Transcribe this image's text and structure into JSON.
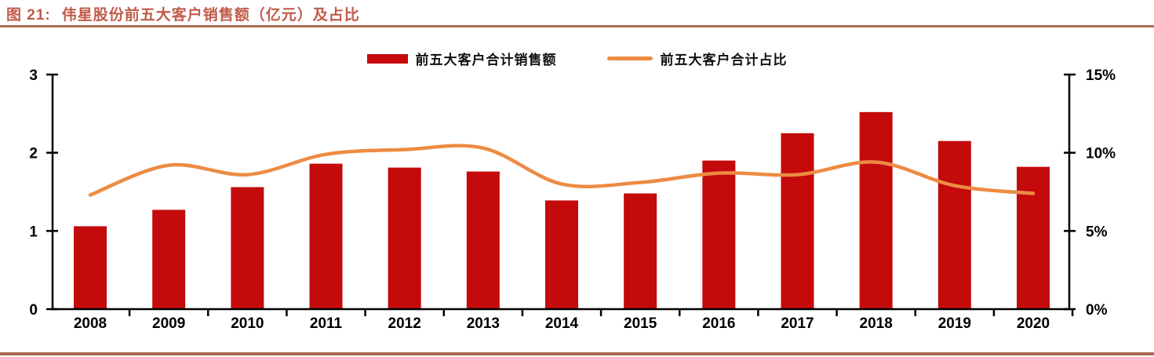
{
  "header": {
    "figure_label": "图 21:",
    "title": "伟星股份前五大客户销售额（亿元）及占比"
  },
  "colors": {
    "bar": "#C40A0B",
    "line": "#ED8B43",
    "title_text": "#C05B4A",
    "rule": "#A96A52",
    "axis": "#000000"
  },
  "legend": {
    "items": [
      {
        "label": "前五大客户合计销售额",
        "marker": "bar-swatch"
      },
      {
        "label": "前五大客户合计占比",
        "marker": "line-swatch"
      }
    ]
  },
  "chart_data": {
    "type": "bar+line",
    "title": "伟星股份前五大客户销售额（亿元）及占比",
    "categories": [
      "2008",
      "2009",
      "2010",
      "2011",
      "2012",
      "2013",
      "2014",
      "2015",
      "2016",
      "2017",
      "2018",
      "2019",
      "2020"
    ],
    "series": [
      {
        "name": "前五大客户合计销售额",
        "type": "bar",
        "axis": "left",
        "unit": "亿元",
        "values": [
          1.06,
          1.27,
          1.56,
          1.86,
          1.81,
          1.76,
          1.39,
          1.48,
          1.9,
          2.25,
          2.52,
          2.15,
          1.82
        ]
      },
      {
        "name": "前五大客户合计占比",
        "type": "line",
        "axis": "right",
        "unit": "%",
        "values": [
          7.3,
          9.2,
          8.6,
          9.9,
          10.2,
          10.3,
          8.0,
          8.1,
          8.7,
          8.6,
          9.4,
          7.9,
          7.4
        ]
      }
    ],
    "left_axis": {
      "range": [
        0,
        3
      ],
      "ticks": [
        0,
        1,
        2,
        3
      ],
      "tick_labels": [
        "0",
        "1",
        "2",
        "3"
      ]
    },
    "right_axis": {
      "range": [
        0,
        15
      ],
      "ticks": [
        0,
        5,
        10,
        15
      ],
      "tick_labels": [
        "0%",
        "5%",
        "10%",
        "15%"
      ]
    },
    "grid": false,
    "legend_position": "top-center"
  }
}
